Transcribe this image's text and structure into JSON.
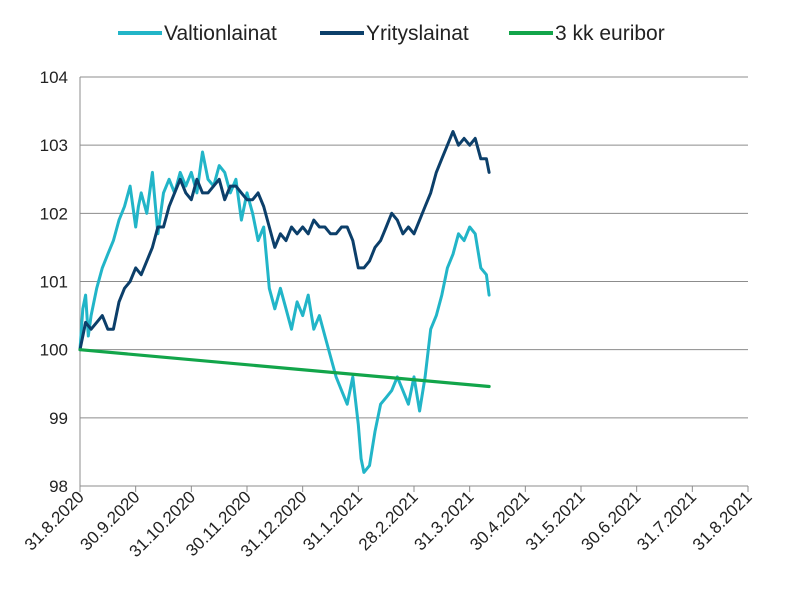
{
  "chart_data": {
    "type": "line",
    "title": "",
    "xlabel": "",
    "ylabel": "",
    "ylim": [
      98,
      104
    ],
    "yticks": [
      98,
      99,
      100,
      101,
      102,
      103,
      104
    ],
    "x_tick_labels": [
      "31.8.2020",
      "30.9.2020",
      "31.10.2020",
      "30.11.2020",
      "31.12.2020",
      "31.1.2021",
      "28.2.2021",
      "31.3.2021",
      "30.4.2021",
      "31.5.2021",
      "30.6.2021",
      "31.7.2021",
      "31.8.2021"
    ],
    "grid": "horizontal",
    "legend_position": "top",
    "series": [
      {
        "name": "Valtionlainat",
        "color": "#22b5c8",
        "points": [
          [
            0,
            100.0
          ],
          [
            0.05,
            100.6
          ],
          [
            0.1,
            100.8
          ],
          [
            0.15,
            100.2
          ],
          [
            0.2,
            100.5
          ],
          [
            0.3,
            100.9
          ],
          [
            0.4,
            101.2
          ],
          [
            0.5,
            101.4
          ],
          [
            0.6,
            101.6
          ],
          [
            0.7,
            101.9
          ],
          [
            0.8,
            102.1
          ],
          [
            0.9,
            102.4
          ],
          [
            0.95,
            102.1
          ],
          [
            1.0,
            101.8
          ],
          [
            1.05,
            102.1
          ],
          [
            1.1,
            102.3
          ],
          [
            1.2,
            102.0
          ],
          [
            1.3,
            102.6
          ],
          [
            1.4,
            101.7
          ],
          [
            1.5,
            102.3
          ],
          [
            1.6,
            102.5
          ],
          [
            1.7,
            102.3
          ],
          [
            1.8,
            102.6
          ],
          [
            1.9,
            102.4
          ],
          [
            2.0,
            102.6
          ],
          [
            2.1,
            102.3
          ],
          [
            2.2,
            102.9
          ],
          [
            2.3,
            102.5
          ],
          [
            2.4,
            102.4
          ],
          [
            2.5,
            102.7
          ],
          [
            2.6,
            102.6
          ],
          [
            2.7,
            102.3
          ],
          [
            2.8,
            102.5
          ],
          [
            2.9,
            101.9
          ],
          [
            3.0,
            102.3
          ],
          [
            3.1,
            102.0
          ],
          [
            3.2,
            101.6
          ],
          [
            3.3,
            101.8
          ],
          [
            3.4,
            100.9
          ],
          [
            3.5,
            100.6
          ],
          [
            3.6,
            100.9
          ],
          [
            3.7,
            100.6
          ],
          [
            3.8,
            100.3
          ],
          [
            3.9,
            100.7
          ],
          [
            4.0,
            100.5
          ],
          [
            4.1,
            100.8
          ],
          [
            4.2,
            100.3
          ],
          [
            4.3,
            100.5
          ],
          [
            4.4,
            100.2
          ],
          [
            4.5,
            99.9
          ],
          [
            4.6,
            99.6
          ],
          [
            4.7,
            99.4
          ],
          [
            4.8,
            99.2
          ],
          [
            4.9,
            99.6
          ],
          [
            5.0,
            98.9
          ],
          [
            5.05,
            98.4
          ],
          [
            5.1,
            98.2
          ],
          [
            5.2,
            98.3
          ],
          [
            5.3,
            98.8
          ],
          [
            5.4,
            99.2
          ],
          [
            5.5,
            99.3
          ],
          [
            5.6,
            99.4
          ],
          [
            5.7,
            99.6
          ],
          [
            5.8,
            99.4
          ],
          [
            5.9,
            99.2
          ],
          [
            6.0,
            99.6
          ],
          [
            6.1,
            99.1
          ],
          [
            6.2,
            99.6
          ],
          [
            6.3,
            100.3
          ],
          [
            6.4,
            100.5
          ],
          [
            6.5,
            100.8
          ],
          [
            6.6,
            101.2
          ],
          [
            6.7,
            101.4
          ],
          [
            6.8,
            101.7
          ],
          [
            6.9,
            101.6
          ],
          [
            7.0,
            101.8
          ],
          [
            7.1,
            101.7
          ],
          [
            7.2,
            101.2
          ],
          [
            7.3,
            101.1
          ],
          [
            7.35,
            100.8
          ]
        ]
      },
      {
        "name": "Yrityslainat",
        "color": "#0c3f6a",
        "points": [
          [
            0,
            100.0
          ],
          [
            0.1,
            100.4
          ],
          [
            0.2,
            100.3
          ],
          [
            0.3,
            100.4
          ],
          [
            0.4,
            100.5
          ],
          [
            0.5,
            100.3
          ],
          [
            0.6,
            100.3
          ],
          [
            0.7,
            100.7
          ],
          [
            0.8,
            100.9
          ],
          [
            0.9,
            101.0
          ],
          [
            1.0,
            101.2
          ],
          [
            1.1,
            101.1
          ],
          [
            1.2,
            101.3
          ],
          [
            1.3,
            101.5
          ],
          [
            1.4,
            101.8
          ],
          [
            1.5,
            101.8
          ],
          [
            1.6,
            102.1
          ],
          [
            1.7,
            102.3
          ],
          [
            1.8,
            102.5
          ],
          [
            1.9,
            102.3
          ],
          [
            2.0,
            102.2
          ],
          [
            2.1,
            102.5
          ],
          [
            2.2,
            102.3
          ],
          [
            2.3,
            102.3
          ],
          [
            2.4,
            102.4
          ],
          [
            2.5,
            102.5
          ],
          [
            2.6,
            102.2
          ],
          [
            2.7,
            102.4
          ],
          [
            2.8,
            102.4
          ],
          [
            2.9,
            102.3
          ],
          [
            3.0,
            102.2
          ],
          [
            3.1,
            102.2
          ],
          [
            3.2,
            102.3
          ],
          [
            3.3,
            102.1
          ],
          [
            3.4,
            101.8
          ],
          [
            3.5,
            101.5
          ],
          [
            3.6,
            101.7
          ],
          [
            3.7,
            101.6
          ],
          [
            3.8,
            101.8
          ],
          [
            3.9,
            101.7
          ],
          [
            4.0,
            101.8
          ],
          [
            4.1,
            101.7
          ],
          [
            4.2,
            101.9
          ],
          [
            4.3,
            101.8
          ],
          [
            4.4,
            101.8
          ],
          [
            4.5,
            101.7
          ],
          [
            4.6,
            101.7
          ],
          [
            4.7,
            101.8
          ],
          [
            4.8,
            101.8
          ],
          [
            4.9,
            101.6
          ],
          [
            5.0,
            101.2
          ],
          [
            5.1,
            101.2
          ],
          [
            5.2,
            101.3
          ],
          [
            5.3,
            101.5
          ],
          [
            5.4,
            101.6
          ],
          [
            5.5,
            101.8
          ],
          [
            5.6,
            102.0
          ],
          [
            5.7,
            101.9
          ],
          [
            5.8,
            101.7
          ],
          [
            5.9,
            101.8
          ],
          [
            6.0,
            101.7
          ],
          [
            6.1,
            101.9
          ],
          [
            6.2,
            102.1
          ],
          [
            6.3,
            102.3
          ],
          [
            6.4,
            102.6
          ],
          [
            6.5,
            102.8
          ],
          [
            6.6,
            103.0
          ],
          [
            6.7,
            103.2
          ],
          [
            6.8,
            103.0
          ],
          [
            6.9,
            103.1
          ],
          [
            7.0,
            103.0
          ],
          [
            7.1,
            103.1
          ],
          [
            7.2,
            102.8
          ],
          [
            7.3,
            102.8
          ],
          [
            7.35,
            102.6
          ]
        ]
      },
      {
        "name": "3 kk euribor",
        "color": "#12a54a",
        "points": [
          [
            0,
            100.0
          ],
          [
            7.35,
            99.46
          ]
        ]
      }
    ]
  }
}
